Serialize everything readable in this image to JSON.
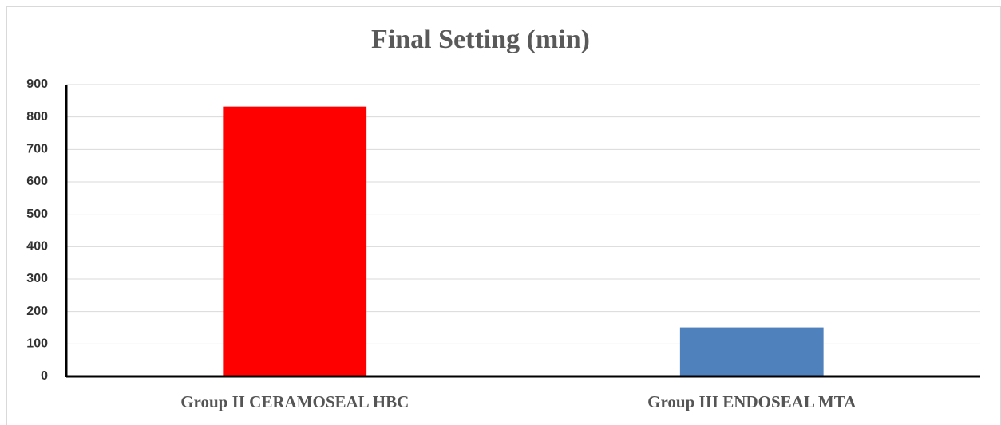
{
  "chart_data": {
    "type": "bar",
    "title": "Final Setting (min)",
    "categories": [
      "Group II CERAMOSEAL HBC",
      "Group III ENDOSEAL MTA"
    ],
    "values": [
      832,
      151
    ],
    "colors": [
      "#ff0000",
      "#4f81bd"
    ],
    "ylim": [
      0,
      900
    ],
    "yticks": [
      0,
      100,
      200,
      300,
      400,
      500,
      600,
      700,
      800,
      900
    ],
    "grid": true
  }
}
